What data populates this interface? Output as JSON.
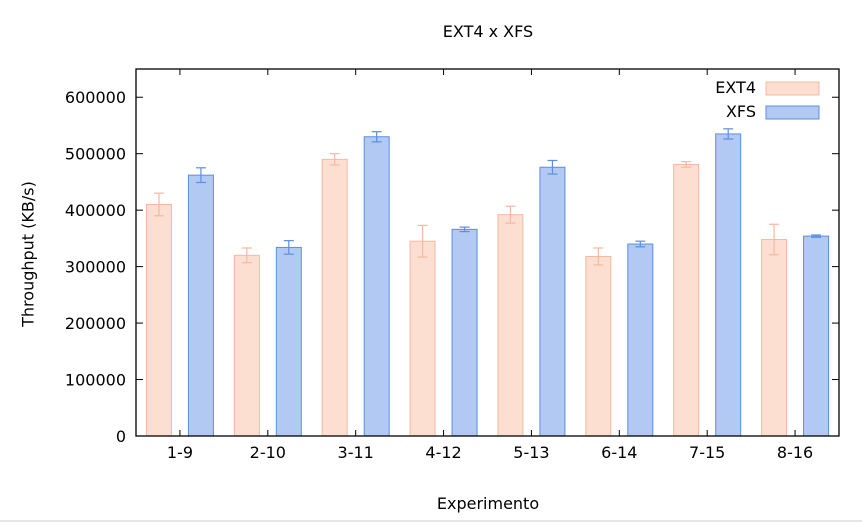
{
  "chart_data": {
    "type": "bar",
    "title": "EXT4 x XFS",
    "xlabel": "Experimento",
    "ylabel": "Throughput (KB/s)",
    "categories": [
      "1-9",
      "2-10",
      "3-11",
      "4-12",
      "5-13",
      "6-14",
      "7-15",
      "8-16"
    ],
    "ylim": [
      0,
      650000
    ],
    "yticks": [
      0,
      100000,
      200000,
      300000,
      400000,
      500000,
      600000
    ],
    "legend_position": "top-right",
    "grid": false,
    "series": [
      {
        "name": "EXT4",
        "color_fill": "#fddfd2",
        "color_stroke": "#f8b7a0",
        "values": [
          410000,
          320000,
          490000,
          345000,
          392000,
          318000,
          481000,
          348000
        ],
        "errors": [
          20000,
          13000,
          10000,
          28000,
          15000,
          15000,
          5000,
          27000
        ]
      },
      {
        "name": "XFS",
        "color_fill": "#b2c9f4",
        "color_stroke": "#5b8ee0",
        "values": [
          462000,
          334000,
          530000,
          366000,
          476000,
          340000,
          535000,
          354000
        ],
        "errors": [
          13000,
          12000,
          9000,
          4000,
          12000,
          5000,
          9000,
          2000
        ]
      }
    ]
  }
}
